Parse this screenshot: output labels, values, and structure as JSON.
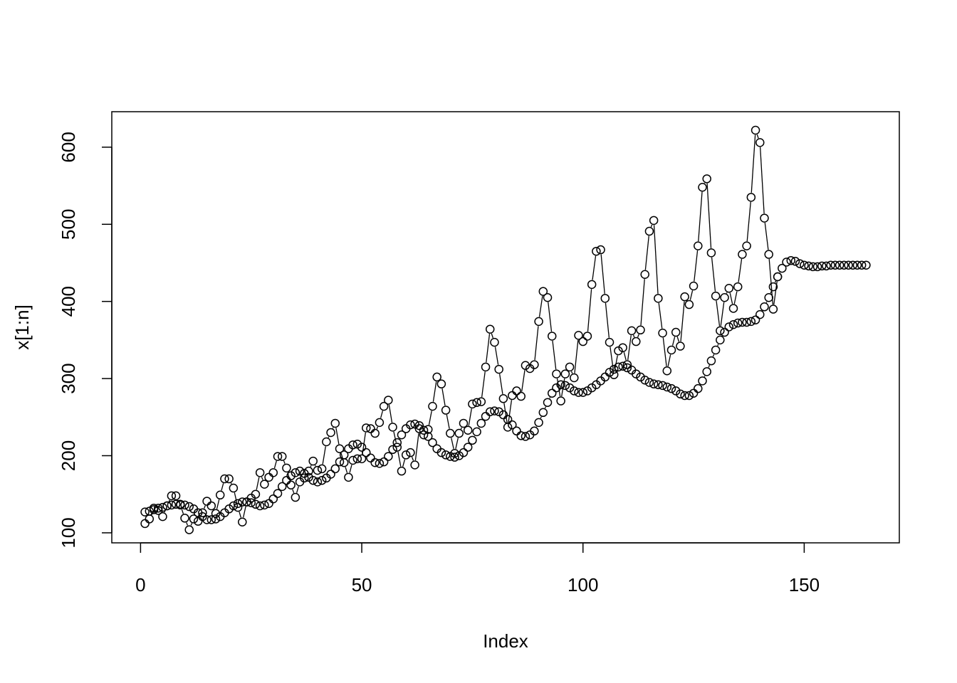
{
  "chart_data": {
    "type": "line",
    "title": "",
    "xlabel": "Index",
    "ylabel": "x[1:n]",
    "xlim": [
      -6.5,
      171.5
    ],
    "ylim": [
      87,
      646
    ],
    "x_ticks": [
      0,
      50,
      100,
      150
    ],
    "y_ticks": [
      100,
      200,
      300,
      400,
      500,
      600
    ],
    "x_tick_labels": [
      "0",
      "50",
      "100",
      "150"
    ],
    "y_tick_labels": [
      "100",
      "200",
      "300",
      "400",
      "500",
      "600"
    ],
    "grid": false,
    "legend": "none",
    "marker": "open-circle",
    "series": [
      {
        "values": [
          112,
          118,
          132,
          129,
          121,
          135,
          148,
          148,
          136,
          119,
          104,
          118,
          115,
          126,
          141,
          135,
          125,
          149,
          170,
          170,
          158,
          133,
          114,
          140,
          145,
          150,
          178,
          163,
          172,
          178,
          199,
          199,
          184,
          162,
          146,
          166,
          171,
          180,
          193,
          181,
          183,
          218,
          230,
          242,
          209,
          191,
          172,
          194,
          196,
          196,
          236,
          235,
          229,
          243,
          264,
          272,
          237,
          211,
          180,
          201,
          204,
          188,
          235,
          227,
          234,
          264,
          302,
          293,
          259,
          229,
          203,
          229,
          242,
          233,
          267,
          269,
          270,
          315,
          364,
          347,
          312,
          274,
          237,
          278,
          284,
          277,
          317,
          313,
          318,
          374,
          413,
          405,
          355,
          306,
          271,
          306,
          315,
          301,
          356,
          348,
          355,
          422,
          465,
          467,
          404,
          347,
          305,
          336,
          340,
          318,
          362,
          348,
          363,
          435,
          491,
          505,
          404,
          359,
          310,
          337,
          360,
          342,
          406,
          396,
          420,
          472,
          548,
          559,
          463,
          407,
          362,
          405,
          417,
          391,
          419,
          461,
          472,
          535,
          622,
          606,
          508,
          461,
          390,
          432
        ]
      },
      {
        "values": [
          127,
          128,
          130,
          132,
          133,
          135,
          136,
          137,
          137,
          136,
          134,
          131,
          126,
          121,
          117,
          117,
          118,
          121,
          126,
          131,
          135,
          138,
          140,
          140,
          139,
          137,
          135,
          136,
          138,
          144,
          151,
          160,
          168,
          174,
          178,
          180,
          177,
          172,
          168,
          166,
          168,
          171,
          176,
          183,
          192,
          201,
          209,
          214,
          215,
          211,
          204,
          197,
          191,
          190,
          192,
          199,
          208,
          217,
          227,
          235,
          240,
          241,
          239,
          233,
          225,
          217,
          209,
          204,
          201,
          199,
          198,
          200,
          204,
          211,
          220,
          231,
          242,
          251,
          257,
          258,
          257,
          253,
          247,
          240,
          232,
          226,
          225,
          227,
          232,
          243,
          256,
          269,
          281,
          288,
          292,
          291,
          288,
          284,
          282,
          282,
          284,
          288,
          292,
          297,
          302,
          308,
          312,
          315,
          316,
          314,
          311,
          306,
          302,
          298,
          295,
          293,
          292,
          291,
          289,
          287,
          284,
          280,
          278,
          278,
          281,
          287,
          297,
          309,
          323,
          337,
          350,
          360,
          367,
          370,
          372,
          373,
          373,
          374,
          376,
          383,
          393,
          405,
          419,
          432,
          443,
          451,
          453,
          452,
          449,
          447,
          446,
          445,
          445,
          446,
          446,
          447,
          447,
          447,
          447,
          447,
          447,
          447,
          447,
          447
        ]
      }
    ]
  }
}
